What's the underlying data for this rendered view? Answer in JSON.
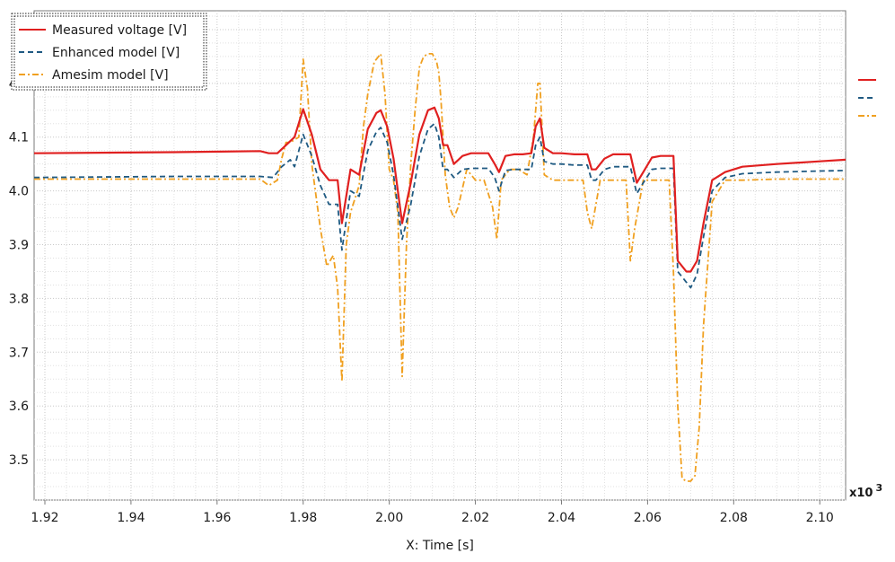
{
  "chart_data": {
    "type": "line",
    "xlabel": "X: Time [s]",
    "ylabel": "",
    "x_scale_note": "x10",
    "x_scale_exp": "3",
    "xlim": [
      1.9175,
      2.106
    ],
    "ylim": [
      3.425,
      4.335
    ],
    "x_ticks": [
      "1.92",
      "1.94",
      "1.96",
      "1.98",
      "2.00",
      "2.02",
      "2.04",
      "2.06",
      "2.08",
      "2.10"
    ],
    "y_ticks": [
      "3.5",
      "3.6",
      "3.7",
      "3.8",
      "3.9",
      "4.0",
      "4.1",
      "4.2"
    ],
    "grid": true,
    "legend_position": "top-left",
    "series": [
      {
        "name": "Measured voltage [V]",
        "color": "#e02020",
        "dash": "solid",
        "x": [
          1.9175,
          1.95,
          1.97,
          1.972,
          1.974,
          1.976,
          1.978,
          1.98,
          1.982,
          1.984,
          1.986,
          1.988,
          1.989,
          1.991,
          1.993,
          1.995,
          1.997,
          1.998,
          1.9995,
          2.001,
          2.003,
          2.005,
          2.007,
          2.009,
          2.0105,
          2.0115,
          2.0125,
          2.0135,
          2.015,
          2.017,
          2.019,
          2.021,
          2.023,
          2.0245,
          2.0255,
          2.027,
          2.029,
          2.031,
          2.033,
          2.034,
          2.035,
          2.036,
          2.038,
          2.04,
          2.043,
          2.046,
          2.047,
          2.048,
          2.05,
          2.052,
          2.054,
          2.056,
          2.0575,
          2.059,
          2.061,
          2.063,
          2.065,
          2.066,
          2.067,
          2.069,
          2.07,
          2.0715,
          2.073,
          2.075,
          2.078,
          2.082,
          2.09,
          2.1,
          2.106
        ],
        "y": [
          4.07,
          4.072,
          4.074,
          4.07,
          4.07,
          4.085,
          4.1,
          4.152,
          4.105,
          4.04,
          4.02,
          4.02,
          3.94,
          4.04,
          4.03,
          4.115,
          4.145,
          4.15,
          4.12,
          4.06,
          3.94,
          4.015,
          4.105,
          4.15,
          4.155,
          4.135,
          4.085,
          4.085,
          4.05,
          4.065,
          4.07,
          4.07,
          4.07,
          4.05,
          4.035,
          4.065,
          4.068,
          4.068,
          4.07,
          4.12,
          4.135,
          4.08,
          4.07,
          4.07,
          4.068,
          4.068,
          4.04,
          4.04,
          4.06,
          4.068,
          4.068,
          4.068,
          4.015,
          4.035,
          4.062,
          4.065,
          4.065,
          4.065,
          3.87,
          3.85,
          3.85,
          3.87,
          3.94,
          4.02,
          4.035,
          4.045,
          4.05,
          4.055,
          4.058
        ]
      },
      {
        "name": "Enhanced model [V]",
        "color": "#1f5a82",
        "dash": "dashed",
        "x": [
          1.9175,
          1.95,
          1.97,
          1.973,
          1.975,
          1.977,
          1.978,
          1.98,
          1.982,
          1.984,
          1.986,
          1.988,
          1.989,
          1.991,
          1.993,
          1.995,
          1.997,
          1.998,
          1.9995,
          2.001,
          2.003,
          2.005,
          2.007,
          2.009,
          2.0105,
          2.0115,
          2.0125,
          2.0135,
          2.015,
          2.017,
          2.019,
          2.021,
          2.023,
          2.0245,
          2.0255,
          2.027,
          2.029,
          2.031,
          2.033,
          2.034,
          2.035,
          2.036,
          2.038,
          2.04,
          2.043,
          2.046,
          2.047,
          2.048,
          2.05,
          2.052,
          2.054,
          2.056,
          2.0575,
          2.059,
          2.061,
          2.063,
          2.065,
          2.066,
          2.067,
          2.069,
          2.07,
          2.0715,
          2.073,
          2.075,
          2.078,
          2.082,
          2.09,
          2.1,
          2.106
        ],
        "y": [
          4.025,
          4.027,
          4.027,
          4.025,
          4.045,
          4.058,
          4.045,
          4.105,
          4.065,
          4.01,
          3.975,
          3.975,
          3.89,
          4.0,
          3.99,
          4.075,
          4.11,
          4.118,
          4.09,
          4.03,
          3.91,
          3.975,
          4.065,
          4.115,
          4.125,
          4.1,
          4.04,
          4.04,
          4.025,
          4.04,
          4.042,
          4.042,
          4.042,
          4.025,
          4.0,
          4.038,
          4.04,
          4.04,
          4.04,
          4.085,
          4.1,
          4.055,
          4.05,
          4.05,
          4.048,
          4.048,
          4.02,
          4.02,
          4.04,
          4.045,
          4.045,
          4.045,
          3.995,
          4.015,
          4.04,
          4.042,
          4.042,
          4.042,
          3.85,
          3.83,
          3.82,
          3.845,
          3.915,
          4.0,
          4.025,
          4.032,
          4.035,
          4.037,
          4.038
        ]
      },
      {
        "name": "Amesim model [V]",
        "color": "#f0a020",
        "dash": "dashdot",
        "x": [
          1.9175,
          1.95,
          1.97,
          1.972,
          1.974,
          1.975,
          1.976,
          1.977,
          1.978,
          1.979,
          1.98,
          1.981,
          1.982,
          1.984,
          1.9855,
          1.987,
          1.988,
          1.989,
          1.99,
          1.991,
          1.993,
          1.994,
          1.995,
          1.9965,
          1.998,
          1.999,
          2.0,
          2.001,
          2.002,
          2.003,
          2.004,
          2.005,
          2.006,
          2.007,
          2.008,
          2.009,
          2.01,
          2.011,
          2.0115,
          2.012,
          2.013,
          2.014,
          2.015,
          2.016,
          2.018,
          2.02,
          2.022,
          2.024,
          2.025,
          2.026,
          2.028,
          2.03,
          2.032,
          2.0335,
          2.0345,
          2.035,
          2.036,
          2.038,
          2.041,
          2.045,
          2.046,
          2.047,
          2.049,
          2.051,
          2.053,
          2.055,
          2.056,
          2.057,
          2.059,
          2.062,
          2.064,
          2.065,
          2.066,
          2.067,
          2.068,
          2.069,
          2.07,
          2.071,
          2.072,
          2.073,
          2.075,
          2.078,
          2.082,
          2.09,
          2.1,
          2.106
        ],
        "y": [
          4.022,
          4.022,
          4.022,
          4.01,
          4.02,
          4.06,
          4.09,
          4.09,
          4.095,
          4.1,
          4.245,
          4.19,
          4.05,
          3.93,
          3.86,
          3.88,
          3.82,
          3.645,
          3.9,
          3.96,
          4.01,
          4.12,
          4.18,
          4.24,
          4.255,
          4.18,
          4.04,
          4.02,
          3.96,
          3.655,
          3.9,
          4.05,
          4.15,
          4.23,
          4.25,
          4.255,
          4.255,
          4.24,
          4.22,
          4.17,
          4.03,
          3.97,
          3.95,
          3.97,
          4.04,
          4.02,
          4.02,
          3.97,
          3.91,
          4.02,
          4.04,
          4.04,
          4.03,
          4.1,
          4.2,
          4.2,
          4.03,
          4.02,
          4.02,
          4.02,
          3.96,
          3.93,
          4.02,
          4.02,
          4.02,
          4.02,
          3.87,
          3.93,
          4.02,
          4.02,
          4.02,
          4.02,
          3.85,
          3.6,
          3.465,
          3.46,
          3.46,
          3.47,
          3.56,
          3.75,
          3.98,
          4.02,
          4.02,
          4.022,
          4.022,
          4.022
        ]
      }
    ]
  }
}
